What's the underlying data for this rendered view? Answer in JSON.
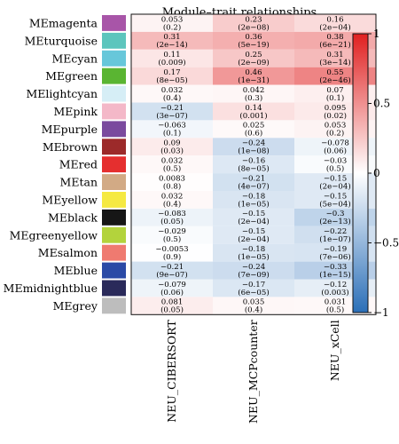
{
  "chart_data": {
    "type": "heatmap",
    "title": "Module–trait relationships",
    "columns": [
      "NEU_CIBERSORT",
      "NEU_MCPcounter",
      "NEU_xCell"
    ],
    "rows": [
      {
        "module": "MEmagenta",
        "color": "#a855a8",
        "r": [
          0.053,
          0.23,
          0.16
        ],
        "r_labels": [
          "0.053",
          "0.23",
          "0.16"
        ],
        "p_labels": [
          "(0.2)",
          "(2e−08)",
          "(2e−04)"
        ]
      },
      {
        "module": "MEturquoise",
        "color": "#5cc5bd",
        "r": [
          0.31,
          0.36,
          0.38
        ],
        "r_labels": [
          "0.31",
          "0.36",
          "0.38"
        ],
        "p_labels": [
          "(2e−14)",
          "(5e−19)",
          "(6e−21)"
        ]
      },
      {
        "module": "MEcyan",
        "color": "#67c7da",
        "r": [
          0.11,
          0.25,
          0.31
        ],
        "r_labels": [
          "0.11",
          "0.25",
          "0.31"
        ],
        "p_labels": [
          "(0.009)",
          "(2e−09)",
          "(3e−14)"
        ]
      },
      {
        "module": "MEgreen",
        "color": "#5ab532",
        "r": [
          0.17,
          0.46,
          0.55
        ],
        "r_labels": [
          "0.17",
          "0.46",
          "0.55"
        ],
        "p_labels": [
          "(8e−05)",
          "(1e−31)",
          "(2e−46)"
        ]
      },
      {
        "module": "MElightcyan",
        "color": "#d6eef6",
        "r": [
          0.032,
          0.042,
          0.07
        ],
        "r_labels": [
          "0.032",
          "0.042",
          "0.07"
        ],
        "p_labels": [
          "(0.4)",
          "(0.3)",
          "(0.1)"
        ]
      },
      {
        "module": "MEpink",
        "color": "#f4b8c8",
        "r": [
          -0.21,
          0.14,
          0.095
        ],
        "r_labels": [
          "−0.21",
          "0.14",
          "0.095"
        ],
        "p_labels": [
          "(3e−07)",
          "(0.001)",
          "(0.02)"
        ]
      },
      {
        "module": "MEpurple",
        "color": "#7a4a9e",
        "r": [
          -0.063,
          0.025,
          0.053
        ],
        "r_labels": [
          "−0.063",
          "0.025",
          "0.053"
        ],
        "p_labels": [
          "(0.1)",
          "(0.6)",
          "(0.2)"
        ]
      },
      {
        "module": "MEbrown",
        "color": "#9c2a2a",
        "r": [
          0.09,
          -0.24,
          -0.078
        ],
        "r_labels": [
          "0.09",
          "−0.24",
          "−0.078"
        ],
        "p_labels": [
          "(0.03)",
          "(1e−08)",
          "(0.06)"
        ]
      },
      {
        "module": "MEred",
        "color": "#e52f2f",
        "r": [
          0.032,
          -0.16,
          -0.03
        ],
        "r_labels": [
          "0.032",
          "−0.16",
          "−0.03"
        ],
        "p_labels": [
          "(0.5)",
          "(8e−05)",
          "(0.5)"
        ]
      },
      {
        "module": "MEtan",
        "color": "#d2aa85",
        "r": [
          0.0083,
          -0.21,
          -0.15
        ],
        "r_labels": [
          "0.0083",
          "−0.21",
          "−0.15"
        ],
        "p_labels": [
          "(0.8)",
          "(4e−07)",
          "(2e−04)"
        ]
      },
      {
        "module": "MEyellow",
        "color": "#f5e942",
        "r": [
          0.032,
          -0.18,
          -0.15
        ],
        "r_labels": [
          "0.032",
          "−0.18",
          "−0.15"
        ],
        "p_labels": [
          "(0.4)",
          "(1e−05)",
          "(5e−04)"
        ]
      },
      {
        "module": "MEblack",
        "color": "#161616",
        "r": [
          -0.083,
          -0.15,
          -0.3
        ],
        "r_labels": [
          "−0.083",
          "−0.15",
          "−0.3"
        ],
        "p_labels": [
          "(0.05)",
          "(2e−04)",
          "(2e−13)"
        ]
      },
      {
        "module": "MEgreenyellow",
        "color": "#b3d33c",
        "r": [
          -0.029,
          -0.15,
          -0.22
        ],
        "r_labels": [
          "−0.029",
          "−0.15",
          "−0.22"
        ],
        "p_labels": [
          "(0.5)",
          "(2e−04)",
          "(1e−07)"
        ]
      },
      {
        "module": "MEsalmon",
        "color": "#ef7a70",
        "r": [
          -0.0053,
          -0.18,
          -0.19
        ],
        "r_labels": [
          "−0.0053",
          "−0.18",
          "−0.19"
        ],
        "p_labels": [
          "(0.9)",
          "(1e−05)",
          "(7e−06)"
        ]
      },
      {
        "module": "MEblue",
        "color": "#2b4aa6",
        "r": [
          -0.21,
          -0.24,
          -0.33
        ],
        "r_labels": [
          "−0.21",
          "−0.24",
          "−0.33"
        ],
        "p_labels": [
          "(9e−07)",
          "(7e−09)",
          "(1e−15)"
        ]
      },
      {
        "module": "MEmidnightblue",
        "color": "#2a2a5a",
        "r": [
          -0.079,
          -0.17,
          -0.12
        ],
        "r_labels": [
          "−0.079",
          "−0.17",
          "−0.12"
        ],
        "p_labels": [
          "(0.06)",
          "(6e−05)",
          "(0.003)"
        ]
      },
      {
        "module": "MEgrey",
        "color": "#bdbdbd",
        "r": [
          0.081,
          0.035,
          0.031
        ],
        "r_labels": [
          "0.081",
          "0.035",
          "0.031"
        ],
        "p_labels": [
          "(0.05)",
          "(0.4)",
          "(0.5)"
        ]
      }
    ],
    "colorbar": {
      "range": [
        -1,
        1
      ],
      "ticks": [
        1,
        0.5,
        0,
        -0.5,
        -1
      ],
      "tick_labels": [
        "1",
        "0.5",
        "0",
        "−0.5",
        "−1"
      ],
      "low_color": "#2b6fb8",
      "mid_color": "#ffffff",
      "high_color": "#e02020"
    }
  }
}
